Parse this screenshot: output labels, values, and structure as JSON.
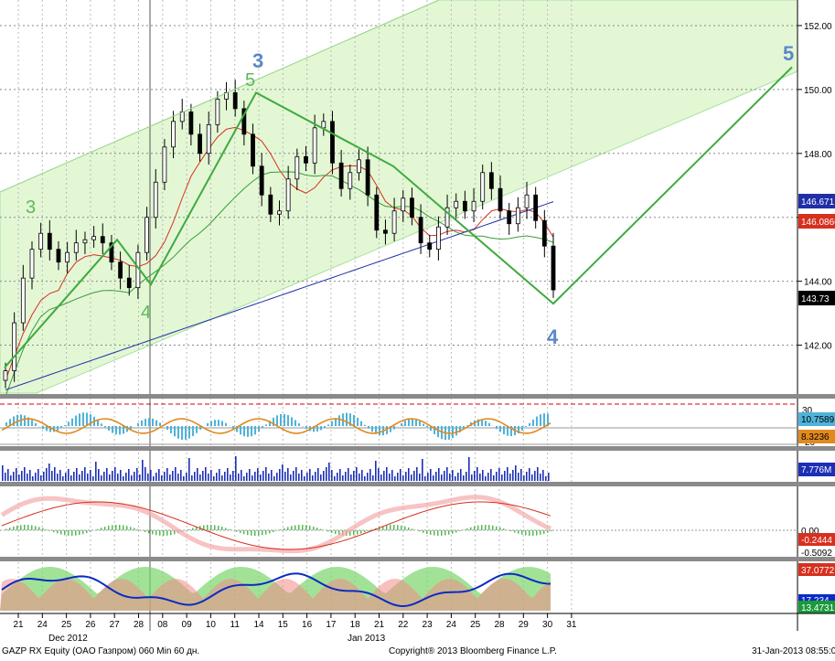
{
  "chart_data": {
    "type": "line",
    "title": "GAZP RX Equity (OAO Газпром) 060 Min 60 дн.",
    "footer": {
      "left": "GAZP RX Equity (OAO Газпром) 060 Min 60 дн.",
      "center": "Copyright® 2013 Bloomberg Finance L.P.",
      "right": "31-Jan-2013 08:55:06"
    },
    "colors": {
      "channel_fill": "#e3f7d5",
      "wave_line": "#3eaa3e",
      "wave_label_green": "#5cb85c",
      "wave_label_blue": "#5a88c8",
      "ma_red": "#d7301f",
      "ma_green": "#3a9c3a",
      "ma_blue": "#1f2fa8",
      "oscillator_bar": "#4fb3d9",
      "oscillator_line": "#e08a1e",
      "volume_bar": "#1c2fb5",
      "macd_fill": "#f4a9a9",
      "dmi_green": "#7bd66b",
      "dmi_red": "#f28a8a",
      "dmi_blue": "#0a2bc4"
    },
    "x_axis": {
      "labels": [
        "21",
        "24",
        "25",
        "26",
        "27",
        "28",
        "08",
        "09",
        "10",
        "11",
        "14",
        "15",
        "16",
        "17",
        "18",
        "21",
        "22",
        "23",
        "24",
        "25",
        "28",
        "29",
        "30",
        "31"
      ],
      "months": [
        "Dec 2012",
        "Jan 2013"
      ]
    },
    "main_panel": {
      "y_ticks": [
        "152.00",
        "150.00",
        "148.00",
        "146.00",
        "144.00",
        "142.00"
      ],
      "ylim": [
        140.5,
        152.8
      ],
      "close_series": [
        141.2,
        142.7,
        144.1,
        145.0,
        145.5,
        145.0,
        144.6,
        144.9,
        145.2,
        145.3,
        145.4,
        145.2,
        144.6,
        144.1,
        143.8,
        144.9,
        146.0,
        147.1,
        148.2,
        149.0,
        149.3,
        148.6,
        148.0,
        148.9,
        149.7,
        149.9,
        149.4,
        148.6,
        147.6,
        146.7,
        146.1,
        146.2,
        147.2,
        147.9,
        147.7,
        148.8,
        149.0,
        147.7,
        146.9,
        147.4,
        147.8,
        146.7,
        145.6,
        145.5,
        146.2,
        146.6,
        146.0,
        145.2,
        145.0,
        145.7,
        146.3,
        146.5,
        146.2,
        146.5,
        147.4,
        146.9,
        146.2,
        145.8,
        146.3,
        146.7,
        145.9,
        145.1,
        143.73
      ],
      "moving_averages": [
        {
          "name": "",
          "last": "146.671"
        },
        {
          "name": "",
          "last": "146.0866"
        }
      ],
      "last_price": "143.73",
      "wave_labels": [
        "3",
        "5",
        "3",
        "4",
        "4",
        "5"
      ]
    },
    "oscillator_panel": {
      "y_ticks": [
        "30",
        "20"
      ],
      "values_badges": [
        "10.7589",
        "8.3236"
      ]
    },
    "volume_panel": {
      "badge": "7.776M"
    },
    "macd_panel": {
      "y_ticks": [
        "0.00"
      ],
      "badges": [
        "-0.2444",
        "-0.5092"
      ]
    },
    "dmi_panel": {
      "badges": [
        "37.0772",
        "17.234",
        "13.4731"
      ]
    }
  }
}
